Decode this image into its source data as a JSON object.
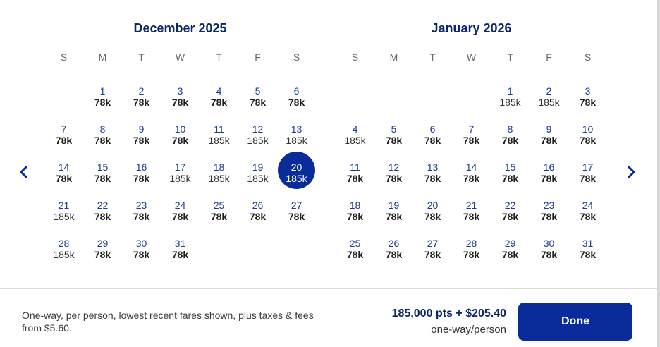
{
  "weekdays": [
    "S",
    "M",
    "T",
    "W",
    "T",
    "F",
    "S"
  ],
  "months": [
    {
      "title": "December 2025",
      "start_weekday": 1,
      "days": [
        {
          "d": "1",
          "p": "78k",
          "low": true
        },
        {
          "d": "2",
          "p": "78k",
          "low": true
        },
        {
          "d": "3",
          "p": "78k",
          "low": true
        },
        {
          "d": "4",
          "p": "78k",
          "low": true
        },
        {
          "d": "5",
          "p": "78k",
          "low": true
        },
        {
          "d": "6",
          "p": "78k",
          "low": true
        },
        {
          "d": "7",
          "p": "78k",
          "low": true
        },
        {
          "d": "8",
          "p": "78k",
          "low": true
        },
        {
          "d": "9",
          "p": "78k",
          "low": true
        },
        {
          "d": "10",
          "p": "78k",
          "low": true
        },
        {
          "d": "11",
          "p": "185k",
          "low": false
        },
        {
          "d": "12",
          "p": "185k",
          "low": false
        },
        {
          "d": "13",
          "p": "185k",
          "low": false
        },
        {
          "d": "14",
          "p": "78k",
          "low": true
        },
        {
          "d": "15",
          "p": "78k",
          "low": true
        },
        {
          "d": "16",
          "p": "78k",
          "low": true
        },
        {
          "d": "17",
          "p": "185k",
          "low": false
        },
        {
          "d": "18",
          "p": "185k",
          "low": false
        },
        {
          "d": "19",
          "p": "185k",
          "low": false
        },
        {
          "d": "20",
          "p": "185k",
          "low": false,
          "selected": true
        },
        {
          "d": "21",
          "p": "185k",
          "low": false
        },
        {
          "d": "22",
          "p": "78k",
          "low": true
        },
        {
          "d": "23",
          "p": "78k",
          "low": true
        },
        {
          "d": "24",
          "p": "78k",
          "low": true
        },
        {
          "d": "25",
          "p": "78k",
          "low": true
        },
        {
          "d": "26",
          "p": "78k",
          "low": true
        },
        {
          "d": "27",
          "p": "78k",
          "low": true
        },
        {
          "d": "28",
          "p": "185k",
          "low": false
        },
        {
          "d": "29",
          "p": "78k",
          "low": true
        },
        {
          "d": "30",
          "p": "78k",
          "low": true
        },
        {
          "d": "31",
          "p": "78k",
          "low": true
        }
      ]
    },
    {
      "title": "January 2026",
      "start_weekday": 4,
      "days": [
        {
          "d": "1",
          "p": "185k",
          "low": false
        },
        {
          "d": "2",
          "p": "185k",
          "low": false
        },
        {
          "d": "3",
          "p": "78k",
          "low": true
        },
        {
          "d": "4",
          "p": "185k",
          "low": false
        },
        {
          "d": "5",
          "p": "78k",
          "low": true
        },
        {
          "d": "6",
          "p": "78k",
          "low": true
        },
        {
          "d": "7",
          "p": "78k",
          "low": true
        },
        {
          "d": "8",
          "p": "78k",
          "low": true
        },
        {
          "d": "9",
          "p": "78k",
          "low": true
        },
        {
          "d": "10",
          "p": "78k",
          "low": true
        },
        {
          "d": "11",
          "p": "78k",
          "low": true
        },
        {
          "d": "12",
          "p": "78k",
          "low": true
        },
        {
          "d": "13",
          "p": "78k",
          "low": true
        },
        {
          "d": "14",
          "p": "78k",
          "low": true
        },
        {
          "d": "15",
          "p": "78k",
          "low": true
        },
        {
          "d": "16",
          "p": "78k",
          "low": true
        },
        {
          "d": "17",
          "p": "78k",
          "low": true
        },
        {
          "d": "18",
          "p": "78k",
          "low": true
        },
        {
          "d": "19",
          "p": "78k",
          "low": true
        },
        {
          "d": "20",
          "p": "78k",
          "low": true
        },
        {
          "d": "21",
          "p": "78k",
          "low": true
        },
        {
          "d": "22",
          "p": "78k",
          "low": true
        },
        {
          "d": "23",
          "p": "78k",
          "low": true
        },
        {
          "d": "24",
          "p": "78k",
          "low": true
        },
        {
          "d": "25",
          "p": "78k",
          "low": true
        },
        {
          "d": "26",
          "p": "78k",
          "low": true
        },
        {
          "d": "27",
          "p": "78k",
          "low": true
        },
        {
          "d": "28",
          "p": "78k",
          "low": true
        },
        {
          "d": "29",
          "p": "78k",
          "low": true
        },
        {
          "d": "30",
          "p": "78k",
          "low": true
        },
        {
          "d": "31",
          "p": "78k",
          "low": true
        }
      ]
    }
  ],
  "nav": {
    "prev_icon": "chevron-left-icon",
    "next_icon": "chevron-right-icon"
  },
  "footer": {
    "disclaimer": "One-way, per person, lowest recent fares shown, plus taxes & fees from $5.60.",
    "fare_price": "185,000 pts + $205.40",
    "fare_note": "one-way/person",
    "done_label": "Done"
  },
  "colors": {
    "accent": "#0a2c9b",
    "title": "#0b2866",
    "date_number": "#1a3b8f"
  }
}
